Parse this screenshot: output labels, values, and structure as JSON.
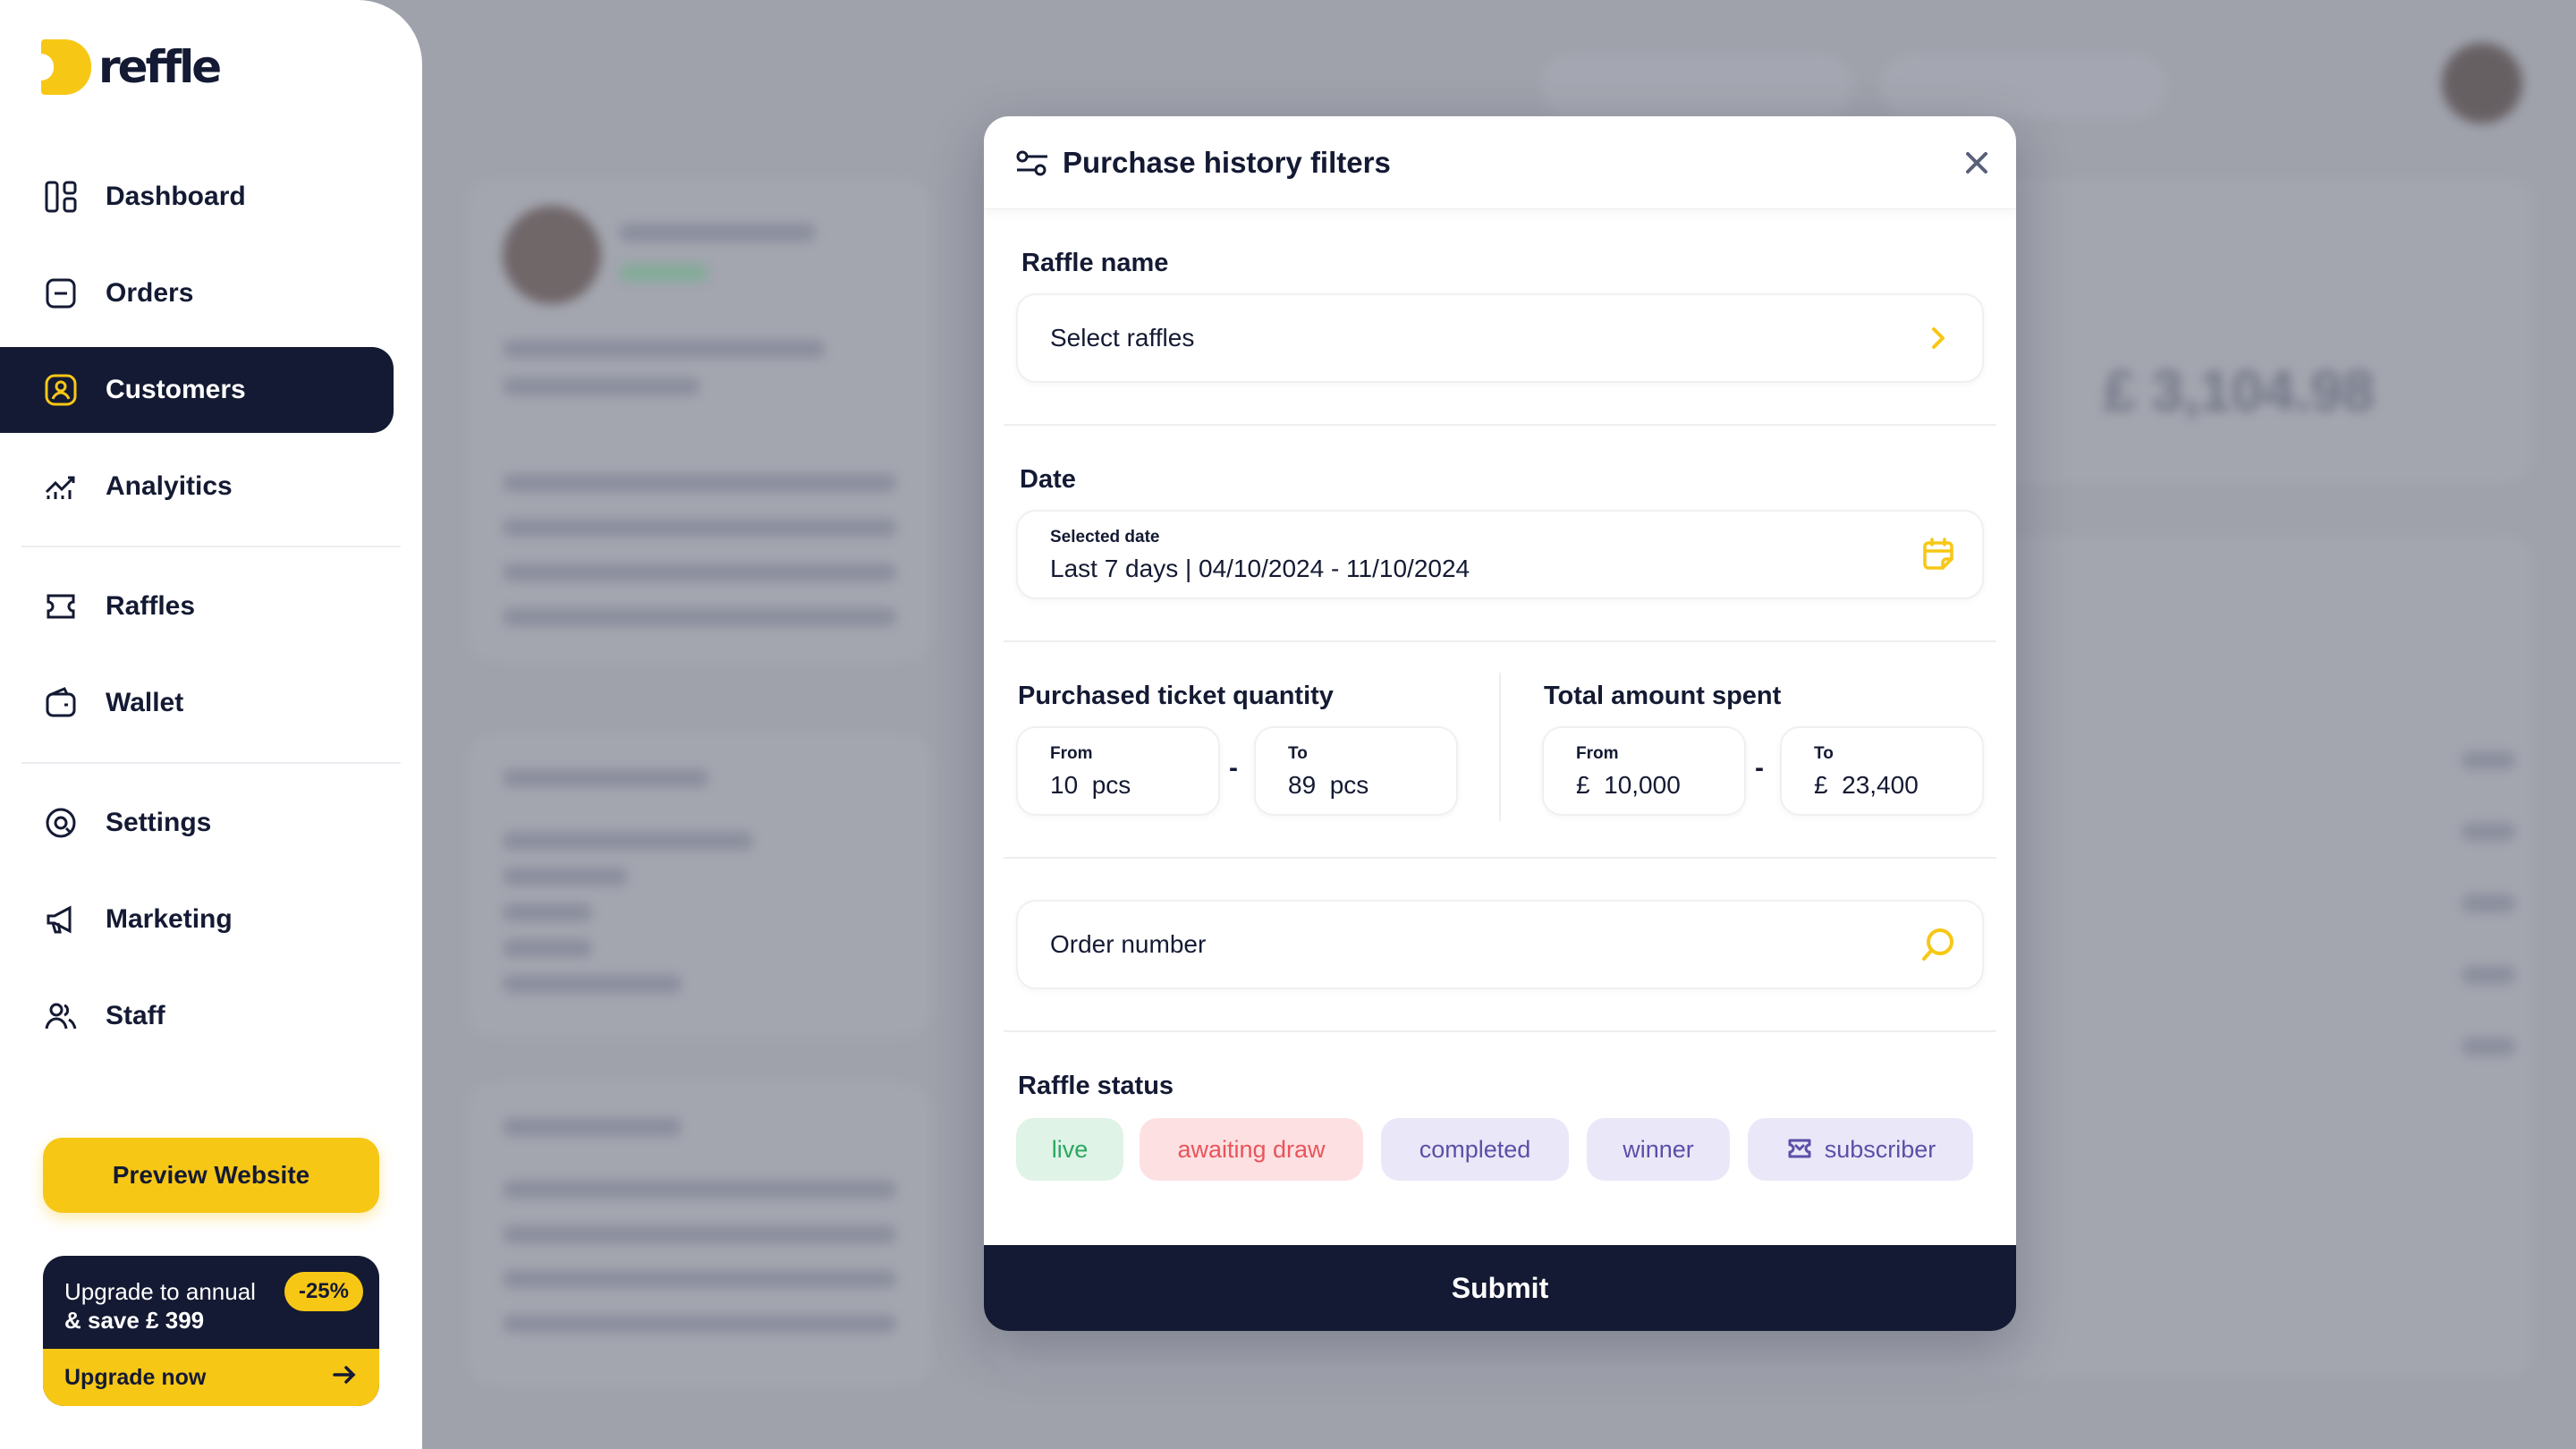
{
  "brand": {
    "name": "reffle",
    "accent": "#f7c716",
    "navy": "#141a33"
  },
  "sidebar": {
    "items": [
      {
        "label": "Dashboard",
        "icon": "dashboard-icon"
      },
      {
        "label": "Orders",
        "icon": "orders-icon"
      },
      {
        "label": "Customers",
        "icon": "customers-icon",
        "active": true
      },
      {
        "label": "Analyitics",
        "icon": "analytics-icon"
      },
      {
        "label": "Raffles",
        "icon": "raffles-icon"
      },
      {
        "label": "Wallet",
        "icon": "wallet-icon"
      },
      {
        "label": "Settings",
        "icon": "settings-icon"
      },
      {
        "label": "Marketing",
        "icon": "megaphone-icon"
      },
      {
        "label": "Staff",
        "icon": "staff-icon"
      }
    ],
    "preview_label": "Preview Website",
    "upgrade": {
      "line1": "Upgrade to annual",
      "line2": "& save £ 399",
      "badge": "-25%",
      "cta": "Upgrade now"
    }
  },
  "modal": {
    "title": "Purchase history filters",
    "raffle_name": {
      "label": "Raffle name",
      "placeholder": "Select raffles"
    },
    "date": {
      "label": "Date",
      "caption": "Selected date",
      "value": "Last 7 days | 04/10/2024 - 11/10/2024"
    },
    "ticket_quantity": {
      "label": "Purchased ticket quantity",
      "from_caption": "From",
      "from_value": "10  pcs",
      "to_caption": "To",
      "to_value": "89  pcs"
    },
    "amount_spent": {
      "label": "Total amount spent",
      "from_caption": "From",
      "from_value": "£  10,000",
      "to_caption": "To",
      "to_value": "£  23,400"
    },
    "order_number": {
      "placeholder": "Order number"
    },
    "raffle_status": {
      "label": "Raffle status",
      "chips": [
        "live",
        "awaiting draw",
        "completed",
        "winner",
        "subscriber"
      ]
    },
    "submit_label": "Submit"
  }
}
